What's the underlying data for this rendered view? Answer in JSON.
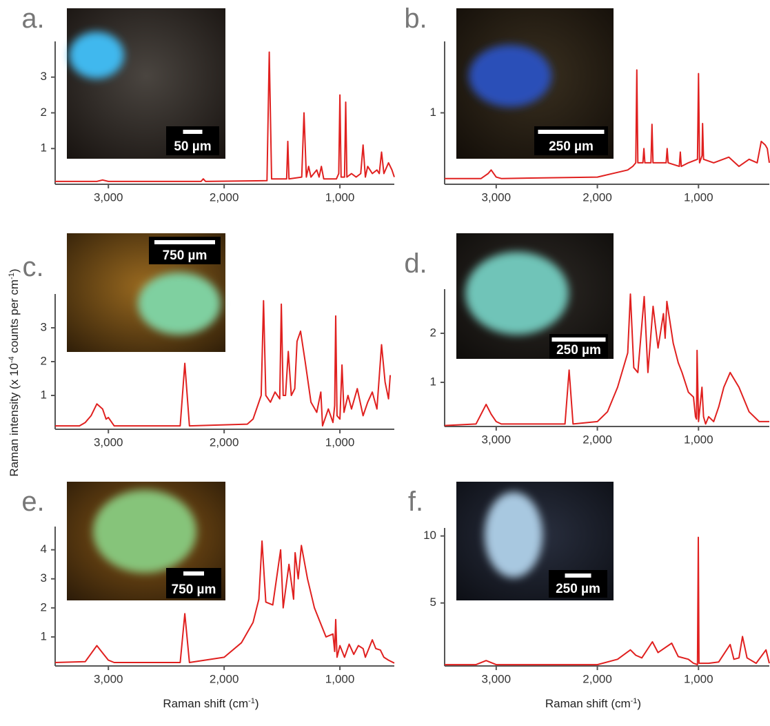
{
  "chart_data": [
    {
      "type": "line",
      "panel_label": "a.",
      "scale_label": "50 µm",
      "color": "#e0201f",
      "ylabel": [
        "Raman intensity (x 10",
        "-4",
        " counts per cm",
        "-1",
        ")"
      ],
      "xlim": [
        3460,
        530
      ],
      "ylim": [
        0,
        4
      ],
      "xticks": [
        {
          "value": 3000,
          "label": "3,000"
        },
        {
          "value": 2000,
          "label": "2,000"
        },
        {
          "value": 1000,
          "label": "1,000"
        }
      ],
      "yticks": [
        1,
        2,
        3
      ],
      "x": [
        3460,
        3100,
        3050,
        3000,
        2200,
        2180,
        2160,
        1630,
        1610,
        1590,
        1460,
        1450,
        1440,
        1330,
        1310,
        1290,
        1270,
        1250,
        1200,
        1180,
        1160,
        1140,
        1030,
        1010,
        1000,
        990,
        960,
        950,
        940,
        900,
        860,
        820,
        800,
        780,
        760,
        720,
        680,
        660,
        640,
        620,
        580,
        550,
        530
      ],
      "values": [
        0.08,
        0.08,
        0.12,
        0.08,
        0.08,
        0.15,
        0.08,
        0.1,
        3.7,
        0.15,
        0.15,
        1.2,
        0.15,
        0.2,
        2.0,
        0.2,
        0.5,
        0.2,
        0.4,
        0.2,
        0.5,
        0.15,
        0.15,
        0.3,
        2.5,
        0.2,
        0.2,
        2.3,
        0.2,
        0.3,
        0.2,
        0.3,
        1.1,
        0.2,
        0.5,
        0.3,
        0.4,
        0.3,
        0.9,
        0.3,
        0.6,
        0.4,
        0.2
      ]
    },
    {
      "type": "line",
      "panel_label": "b.",
      "scale_label": "250 µm",
      "color": "#e0201f",
      "xlim": [
        3510,
        300
      ],
      "ylim": [
        0,
        2
      ],
      "xticks": [
        {
          "value": 3000,
          "label": "3,000"
        },
        {
          "value": 2000,
          "label": "2,000"
        },
        {
          "value": 1000,
          "label": "1,000"
        }
      ],
      "yticks": [
        1
      ],
      "x": [
        3510,
        3150,
        3080,
        3050,
        3000,
        2950,
        2000,
        1700,
        1650,
        1620,
        1610,
        1600,
        1550,
        1540,
        1530,
        1470,
        1460,
        1450,
        1320,
        1310,
        1300,
        1190,
        1180,
        1170,
        1100,
        1010,
        1000,
        990,
        965,
        960,
        950,
        850,
        700,
        600,
        500,
        420,
        380,
        340,
        320,
        300
      ],
      "values": [
        0.08,
        0.08,
        0.15,
        0.2,
        0.1,
        0.08,
        0.1,
        0.2,
        0.25,
        0.3,
        1.6,
        0.3,
        0.3,
        0.5,
        0.3,
        0.3,
        0.84,
        0.3,
        0.3,
        0.5,
        0.3,
        0.25,
        0.45,
        0.25,
        0.3,
        0.35,
        1.55,
        0.3,
        0.4,
        0.85,
        0.35,
        0.3,
        0.38,
        0.25,
        0.35,
        0.3,
        0.6,
        0.55,
        0.5,
        0.3
      ]
    },
    {
      "type": "line",
      "panel_label": "c.",
      "scale_label": "750 µm",
      "color": "#e0201f",
      "xlim": [
        3460,
        530
      ],
      "ylim": [
        0,
        4
      ],
      "xticks": [
        {
          "value": 3000,
          "label": "3,000"
        },
        {
          "value": 2000,
          "label": "2,000"
        },
        {
          "value": 1000,
          "label": "1,000"
        }
      ],
      "yticks": [
        1,
        2,
        3
      ],
      "x": [
        3460,
        3250,
        3200,
        3150,
        3100,
        3050,
        3020,
        3000,
        2950,
        2380,
        2340,
        2300,
        1800,
        1750,
        1680,
        1660,
        1640,
        1600,
        1560,
        1520,
        1506,
        1490,
        1470,
        1446,
        1420,
        1390,
        1370,
        1340,
        1300,
        1250,
        1200,
        1165,
        1150,
        1100,
        1060,
        1045,
        1036,
        1025,
        1000,
        982,
        965,
        930,
        900,
        850,
        800,
        760,
        720,
        680,
        640,
        610,
        580,
        565
      ],
      "values": [
        0.1,
        0.1,
        0.2,
        0.4,
        0.75,
        0.6,
        0.3,
        0.35,
        0.1,
        0.1,
        1.95,
        0.1,
        0.15,
        0.3,
        1.0,
        3.8,
        1.0,
        0.8,
        1.1,
        0.9,
        3.7,
        1.0,
        1.0,
        2.3,
        1.0,
        1.2,
        2.6,
        2.9,
        2.0,
        0.8,
        0.5,
        1.1,
        0.1,
        0.6,
        0.2,
        0.7,
        3.35,
        0.4,
        0.3,
        1.9,
        0.5,
        1.0,
        0.6,
        1.2,
        0.4,
        0.8,
        1.1,
        0.6,
        2.5,
        1.4,
        0.9,
        1.6
      ]
    },
    {
      "type": "line",
      "panel_label": "d.",
      "scale_label": "250 µm",
      "color": "#e0201f",
      "xlim": [
        3510,
        300
      ],
      "ylim": [
        0.1,
        2.9
      ],
      "xticks": [
        {
          "value": 3000,
          "label": "3,000"
        },
        {
          "value": 2000,
          "label": "2,000"
        },
        {
          "value": 1000,
          "label": "1,000"
        }
      ],
      "yticks": [
        1,
        2
      ],
      "x": [
        3510,
        3200,
        3100,
        3050,
        3000,
        2950,
        2320,
        2279,
        2240,
        2000,
        1900,
        1800,
        1700,
        1673,
        1640,
        1600,
        1537,
        1500,
        1449,
        1400,
        1347,
        1330,
        1313,
        1250,
        1200,
        1163,
        1100,
        1050,
        1030,
        1020,
        1014,
        1000,
        966,
        950,
        930,
        900,
        850,
        800,
        750,
        687,
        600,
        500,
        400,
        300
      ],
      "values": [
        0.12,
        0.15,
        0.55,
        0.35,
        0.2,
        0.15,
        0.15,
        1.25,
        0.15,
        0.2,
        0.4,
        0.9,
        1.6,
        2.8,
        1.3,
        1.2,
        2.75,
        1.2,
        2.55,
        1.7,
        2.4,
        1.9,
        2.65,
        1.8,
        1.4,
        1.2,
        0.8,
        0.7,
        0.3,
        0.25,
        1.65,
        0.2,
        0.9,
        0.3,
        0.15,
        0.3,
        0.2,
        0.5,
        0.9,
        1.2,
        0.9,
        0.4,
        0.2,
        0.2
      ]
    },
    {
      "type": "line",
      "panel_label": "e.",
      "scale_label": "750 µm",
      "color": "#e0201f",
      "xlabel": [
        "Raman shift (cm",
        "-1",
        ")"
      ],
      "xlim": [
        3460,
        530
      ],
      "ylim": [
        0,
        4.8
      ],
      "xticks": [
        {
          "value": 3000,
          "label": "3,000"
        },
        {
          "value": 2000,
          "label": "2,000"
        },
        {
          "value": 1000,
          "label": "1,000"
        }
      ],
      "yticks": [
        1,
        2,
        3,
        4
      ],
      "x": [
        3460,
        3200,
        3100,
        3050,
        3000,
        2950,
        2380,
        2340,
        2300,
        2000,
        1850,
        1750,
        1700,
        1673,
        1640,
        1580,
        1512,
        1490,
        1440,
        1400,
        1387,
        1360,
        1333,
        1280,
        1220,
        1170,
        1120,
        1060,
        1045,
        1036,
        1025,
        1000,
        960,
        920,
        880,
        840,
        800,
        780,
        720,
        690,
        650,
        620,
        580,
        530
      ],
      "values": [
        0.12,
        0.15,
        0.7,
        0.45,
        0.2,
        0.12,
        0.12,
        1.8,
        0.12,
        0.3,
        0.8,
        1.5,
        2.3,
        4.3,
        2.2,
        2.1,
        4.0,
        2.0,
        3.5,
        2.3,
        3.9,
        3.0,
        4.15,
        3.0,
        2.0,
        1.5,
        1.0,
        1.1,
        0.5,
        1.6,
        0.3,
        0.7,
        0.3,
        0.75,
        0.4,
        0.7,
        0.6,
        0.3,
        0.9,
        0.6,
        0.55,
        0.3,
        0.2,
        0.1
      ]
    },
    {
      "type": "line",
      "panel_label": "f.",
      "scale_label": "250 µm",
      "color": "#e0201f",
      "xlabel": [
        "Raman shift (cm",
        "-1",
        ")"
      ],
      "xlim": [
        3510,
        300
      ],
      "ylim": [
        0.3,
        10.6
      ],
      "xticks": [
        {
          "value": 3000,
          "label": "3,000"
        },
        {
          "value": 2000,
          "label": "2,000"
        },
        {
          "value": 1000,
          "label": "1,000"
        }
      ],
      "yticks": [
        5,
        10
      ],
      "x": [
        3510,
        3200,
        3100,
        3000,
        2000,
        1800,
        1673,
        1620,
        1560,
        1456,
        1400,
        1265,
        1200,
        1100,
        1050,
        1010,
        1002,
        995,
        900,
        800,
        687,
        650,
        600,
        565,
        520,
        430,
        333,
        300
      ],
      "values": [
        0.4,
        0.4,
        0.7,
        0.4,
        0.4,
        0.8,
        1.5,
        1.1,
        0.9,
        2.1,
        1.3,
        2.0,
        1.0,
        0.8,
        0.5,
        0.4,
        9.9,
        0.5,
        0.5,
        0.6,
        1.9,
        0.8,
        0.9,
        2.5,
        0.9,
        0.5,
        1.5,
        0.5
      ]
    }
  ]
}
